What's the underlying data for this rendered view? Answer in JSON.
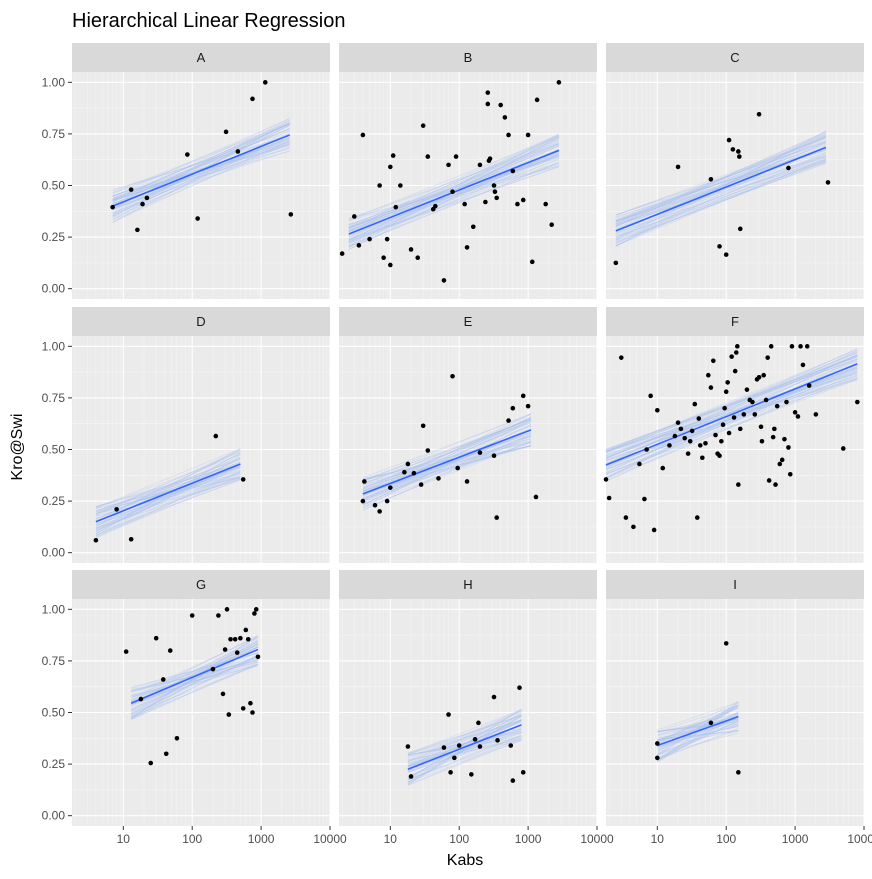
{
  "chart_data": {
    "type": "scatter",
    "title": "Hierarchical Linear Regression",
    "xlabel": "Kabs",
    "ylabel": "Kro@Swi",
    "x_scale": "log10",
    "xlim": [
      1.8,
      10000
    ],
    "ylim": [
      -0.05,
      1.05
    ],
    "x_ticks": [
      10,
      100,
      1000,
      10000
    ],
    "x_tick_labels": [
      "10",
      "100",
      "1000",
      "10000"
    ],
    "y_ticks": [
      0,
      0.25,
      0.5,
      0.75,
      1
    ],
    "y_tick_labels": [
      "0.00",
      "0.25",
      "0.50",
      "0.75",
      "1.00"
    ],
    "grid": true,
    "layout": "facet 3x3",
    "colors": {
      "panel_bg": "#ebebeb",
      "strip_bg": "#d9d9d9",
      "grid": "#ffffff",
      "points": "#000000",
      "fit_line": "#3366ff",
      "posterior_lines": "#a8c0ee"
    },
    "panels": [
      {
        "name": "A",
        "fit": {
          "x0": 7,
          "y0": 0.4,
          "x1": 2600,
          "y1": 0.745
        },
        "points": [
          [
            7,
            0.395
          ],
          [
            13,
            0.48
          ],
          [
            16,
            0.285
          ],
          [
            19,
            0.41
          ],
          [
            22,
            0.44
          ],
          [
            85,
            0.65
          ],
          [
            120,
            0.34
          ],
          [
            310,
            0.76
          ],
          [
            460,
            0.665
          ],
          [
            750,
            0.92
          ],
          [
            1150,
            1.0
          ],
          [
            2700,
            0.36
          ]
        ]
      },
      {
        "name": "B",
        "fit": {
          "x0": 2.5,
          "y0": 0.265,
          "x1": 2800,
          "y1": 0.67
        },
        "points": [
          [
            2,
            0.17
          ],
          [
            3,
            0.35
          ],
          [
            3.5,
            0.21
          ],
          [
            4,
            0.745
          ],
          [
            5,
            0.24
          ],
          [
            7,
            0.5
          ],
          [
            8,
            0.15
          ],
          [
            9,
            0.24
          ],
          [
            10,
            0.115
          ],
          [
            10,
            0.59
          ],
          [
            11,
            0.645
          ],
          [
            12,
            0.395
          ],
          [
            14,
            0.5
          ],
          [
            20,
            0.19
          ],
          [
            25,
            0.15
          ],
          [
            30,
            0.79
          ],
          [
            35,
            0.64
          ],
          [
            42,
            0.385
          ],
          [
            45,
            0.4
          ],
          [
            60,
            0.04
          ],
          [
            70,
            0.6
          ],
          [
            80,
            0.47
          ],
          [
            90,
            0.64
          ],
          [
            120,
            0.41
          ],
          [
            130,
            0.2
          ],
          [
            160,
            0.3
          ],
          [
            200,
            0.6
          ],
          [
            240,
            0.42
          ],
          [
            260,
            0.95
          ],
          [
            260,
            0.895
          ],
          [
            270,
            0.62
          ],
          [
            280,
            0.63
          ],
          [
            320,
            0.5
          ],
          [
            330,
            0.47
          ],
          [
            350,
            0.44
          ],
          [
            400,
            0.89
          ],
          [
            460,
            0.83
          ],
          [
            520,
            0.745
          ],
          [
            600,
            0.57
          ],
          [
            700,
            0.41
          ],
          [
            850,
            0.43
          ],
          [
            1000,
            0.745
          ],
          [
            1150,
            0.13
          ],
          [
            1350,
            0.915
          ],
          [
            1800,
            0.41
          ],
          [
            2200,
            0.31
          ],
          [
            2800,
            1.0
          ]
        ]
      },
      {
        "name": "C",
        "fit": {
          "x0": 2.5,
          "y0": 0.28,
          "x1": 2800,
          "y1": 0.685
        },
        "points": [
          [
            2.5,
            0.125
          ],
          [
            20,
            0.59
          ],
          [
            60,
            0.53
          ],
          [
            80,
            0.205
          ],
          [
            100,
            0.165
          ],
          [
            110,
            0.72
          ],
          [
            125,
            0.675
          ],
          [
            150,
            0.665
          ],
          [
            155,
            0.64
          ],
          [
            160,
            0.29
          ],
          [
            300,
            0.845
          ],
          [
            800,
            0.585
          ],
          [
            3000,
            0.515
          ]
        ]
      },
      {
        "name": "D",
        "fit": {
          "x0": 4,
          "y0": 0.15,
          "x1": 500,
          "y1": 0.43
        },
        "points": [
          [
            4,
            0.06
          ],
          [
            8,
            0.21
          ],
          [
            13,
            0.065
          ],
          [
            220,
            0.565
          ],
          [
            550,
            0.355
          ]
        ]
      },
      {
        "name": "E",
        "fit": {
          "x0": 4,
          "y0": 0.285,
          "x1": 1100,
          "y1": 0.595
        },
        "points": [
          [
            4,
            0.25
          ],
          [
            4.2,
            0.345
          ],
          [
            6,
            0.23
          ],
          [
            7,
            0.2
          ],
          [
            9,
            0.25
          ],
          [
            10,
            0.315
          ],
          [
            16,
            0.39
          ],
          [
            18,
            0.43
          ],
          [
            22,
            0.385
          ],
          [
            28,
            0.33
          ],
          [
            30,
            0.615
          ],
          [
            35,
            0.495
          ],
          [
            50,
            0.36
          ],
          [
            80,
            0.855
          ],
          [
            95,
            0.41
          ],
          [
            130,
            0.345
          ],
          [
            200,
            0.485
          ],
          [
            320,
            0.47
          ],
          [
            350,
            0.17
          ],
          [
            520,
            0.64
          ],
          [
            600,
            0.7
          ],
          [
            850,
            0.76
          ],
          [
            1000,
            0.71
          ],
          [
            1300,
            0.27
          ]
        ]
      },
      {
        "name": "F",
        "fit": {
          "x0": 1.8,
          "y0": 0.425,
          "x1": 8000,
          "y1": 0.915
        },
        "points": [
          [
            1.8,
            0.355
          ],
          [
            2,
            0.265
          ],
          [
            3,
            0.945
          ],
          [
            3.5,
            0.17
          ],
          [
            4.5,
            0.125
          ],
          [
            5.5,
            0.43
          ],
          [
            6.5,
            0.26
          ],
          [
            7,
            0.5
          ],
          [
            8,
            0.76
          ],
          [
            9,
            0.11
          ],
          [
            10,
            0.69
          ],
          [
            12,
            0.41
          ],
          [
            15,
            0.52
          ],
          [
            18,
            0.565
          ],
          [
            20,
            0.63
          ],
          [
            22,
            0.6
          ],
          [
            25,
            0.555
          ],
          [
            28,
            0.48
          ],
          [
            30,
            0.54
          ],
          [
            32,
            0.59
          ],
          [
            35,
            0.72
          ],
          [
            38,
            0.17
          ],
          [
            40,
            0.65
          ],
          [
            42,
            0.52
          ],
          [
            45,
            0.46
          ],
          [
            50,
            0.53
          ],
          [
            55,
            0.86
          ],
          [
            60,
            0.8
          ],
          [
            65,
            0.93
          ],
          [
            70,
            0.57
          ],
          [
            75,
            0.48
          ],
          [
            80,
            0.47
          ],
          [
            85,
            0.54
          ],
          [
            90,
            0.62
          ],
          [
            95,
            0.7
          ],
          [
            100,
            0.78
          ],
          [
            105,
            0.825
          ],
          [
            110,
            0.58
          ],
          [
            120,
            0.95
          ],
          [
            130,
            0.655
          ],
          [
            135,
            0.88
          ],
          [
            140,
            0.97
          ],
          [
            145,
            1.0
          ],
          [
            150,
            0.33
          ],
          [
            160,
            0.6
          ],
          [
            180,
            0.67
          ],
          [
            200,
            0.79
          ],
          [
            220,
            0.74
          ],
          [
            240,
            0.73
          ],
          [
            260,
            0.67
          ],
          [
            280,
            0.84
          ],
          [
            300,
            0.85
          ],
          [
            320,
            0.61
          ],
          [
            330,
            0.54
          ],
          [
            350,
            0.86
          ],
          [
            380,
            0.74
          ],
          [
            400,
            0.945
          ],
          [
            420,
            0.35
          ],
          [
            450,
            1.0
          ],
          [
            480,
            0.56
          ],
          [
            500,
            0.6
          ],
          [
            520,
            0.33
          ],
          [
            550,
            0.71
          ],
          [
            600,
            0.43
          ],
          [
            650,
            0.45
          ],
          [
            700,
            0.55
          ],
          [
            750,
            0.73
          ],
          [
            800,
            0.51
          ],
          [
            850,
            0.38
          ],
          [
            900,
            1.0
          ],
          [
            1000,
            0.68
          ],
          [
            1100,
            0.66
          ],
          [
            1200,
            1.0
          ],
          [
            1300,
            0.91
          ],
          [
            1500,
            1.0
          ],
          [
            1600,
            0.81
          ],
          [
            2000,
            0.67
          ],
          [
            5000,
            0.505
          ],
          [
            8000,
            0.73
          ]
        ]
      },
      {
        "name": "G",
        "fit": {
          "x0": 13,
          "y0": 0.545,
          "x1": 900,
          "y1": 0.805
        },
        "points": [
          [
            11,
            0.795
          ],
          [
            18,
            0.565
          ],
          [
            25,
            0.255
          ],
          [
            30,
            0.86
          ],
          [
            38,
            0.66
          ],
          [
            42,
            0.3
          ],
          [
            48,
            0.8
          ],
          [
            60,
            0.375
          ],
          [
            100,
            0.97
          ],
          [
            200,
            0.71
          ],
          [
            240,
            0.97
          ],
          [
            280,
            0.59
          ],
          [
            300,
            0.805
          ],
          [
            320,
            1.0
          ],
          [
            340,
            0.49
          ],
          [
            360,
            0.855
          ],
          [
            420,
            0.855
          ],
          [
            450,
            0.79
          ],
          [
            500,
            0.86
          ],
          [
            550,
            0.52
          ],
          [
            600,
            0.9
          ],
          [
            650,
            0.855
          ],
          [
            700,
            0.545
          ],
          [
            750,
            0.5
          ],
          [
            800,
            0.98
          ],
          [
            850,
            1.0
          ],
          [
            900,
            0.77
          ]
        ]
      },
      {
        "name": "H",
        "fit": {
          "x0": 18,
          "y0": 0.225,
          "x1": 800,
          "y1": 0.44
        },
        "points": [
          [
            18,
            0.335
          ],
          [
            20,
            0.19
          ],
          [
            60,
            0.33
          ],
          [
            70,
            0.49
          ],
          [
            75,
            0.21
          ],
          [
            85,
            0.28
          ],
          [
            100,
            0.34
          ],
          [
            150,
            0.2
          ],
          [
            170,
            0.37
          ],
          [
            190,
            0.45
          ],
          [
            200,
            0.335
          ],
          [
            320,
            0.575
          ],
          [
            360,
            0.365
          ],
          [
            560,
            0.34
          ],
          [
            600,
            0.17
          ],
          [
            750,
            0.62
          ],
          [
            850,
            0.21
          ]
        ]
      },
      {
        "name": "I",
        "fit": {
          "x0": 10,
          "y0": 0.34,
          "x1": 150,
          "y1": 0.48
        },
        "points": [
          [
            10,
            0.35
          ],
          [
            10,
            0.28
          ],
          [
            60,
            0.45
          ],
          [
            100,
            0.835
          ],
          [
            150,
            0.21
          ]
        ]
      }
    ]
  }
}
